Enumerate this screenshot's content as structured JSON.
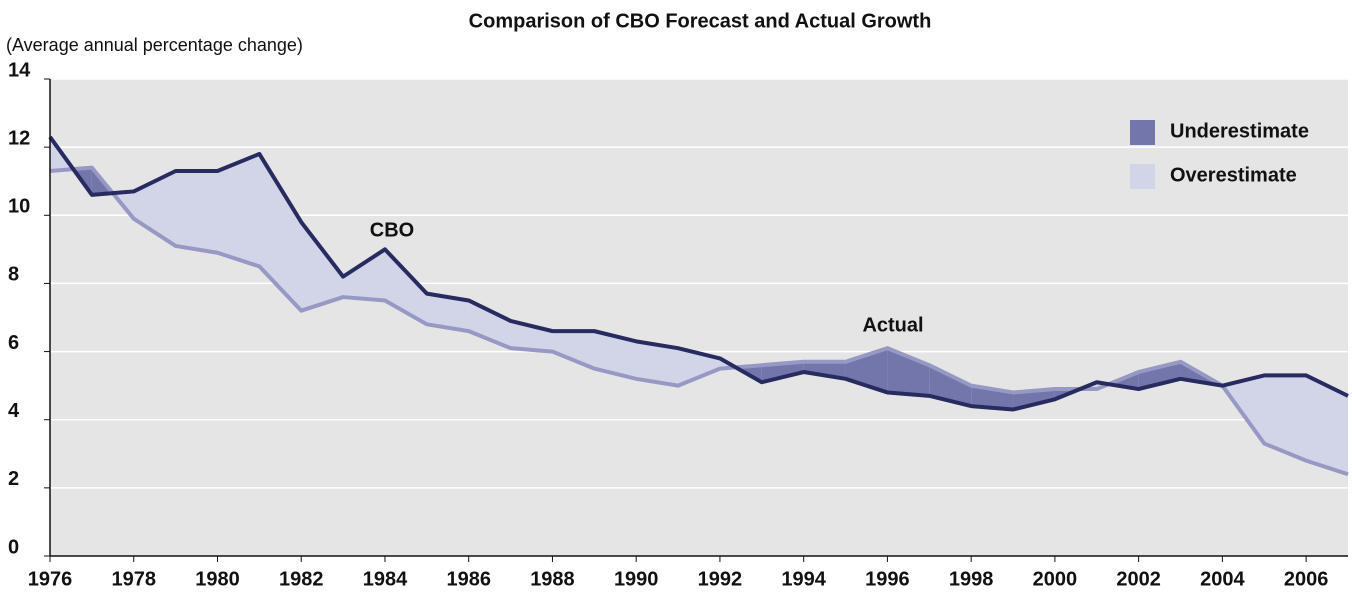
{
  "chart_data": {
    "type": "line",
    "title": "Comparison of CBO Forecast and Actual Growth",
    "subtitle": "(Average annual percentage change)",
    "x": [
      1976,
      1977,
      1978,
      1979,
      1980,
      1981,
      1982,
      1983,
      1984,
      1985,
      1986,
      1987,
      1988,
      1989,
      1990,
      1991,
      1992,
      1993,
      1994,
      1995,
      1996,
      1997,
      1998,
      1999,
      2000,
      2001,
      2002,
      2003,
      2004,
      2005,
      2006,
      2007
    ],
    "series": [
      {
        "name": "CBO",
        "color": "#272b60",
        "values": [
          12.3,
          10.6,
          10.7,
          11.3,
          11.3,
          11.8,
          9.8,
          8.2,
          9.0,
          7.7,
          7.5,
          6.9,
          6.6,
          6.6,
          6.3,
          6.1,
          5.8,
          5.1,
          5.4,
          5.2,
          4.8,
          4.7,
          4.4,
          4.3,
          4.6,
          5.1,
          4.9,
          5.2,
          5.0,
          5.3,
          5.3,
          4.7
        ]
      },
      {
        "name": "Actual",
        "color": "#9799c4",
        "values": [
          11.3,
          11.4,
          9.9,
          9.1,
          8.9,
          8.5,
          7.2,
          7.6,
          7.5,
          6.8,
          6.6,
          6.1,
          6.0,
          5.5,
          5.2,
          5.0,
          5.5,
          5.6,
          5.7,
          5.7,
          6.1,
          5.6,
          5.0,
          4.8,
          4.9,
          4.9,
          5.4,
          5.7,
          5.0,
          3.3,
          2.8,
          2.4
        ]
      }
    ],
    "areas": [
      {
        "name": "Underestimate",
        "color": "#7376ab"
      },
      {
        "name": "Overestimate",
        "color": "#d2d4e8"
      }
    ],
    "xlim": [
      1976,
      2007
    ],
    "xticks": [
      1976,
      1978,
      1980,
      1982,
      1984,
      1986,
      1988,
      1990,
      1992,
      1994,
      1996,
      1998,
      2000,
      2002,
      2004,
      2006
    ],
    "ylim": [
      0,
      14
    ],
    "yticks": [
      0,
      2,
      4,
      6,
      8,
      10,
      12,
      14
    ],
    "grid": true
  }
}
